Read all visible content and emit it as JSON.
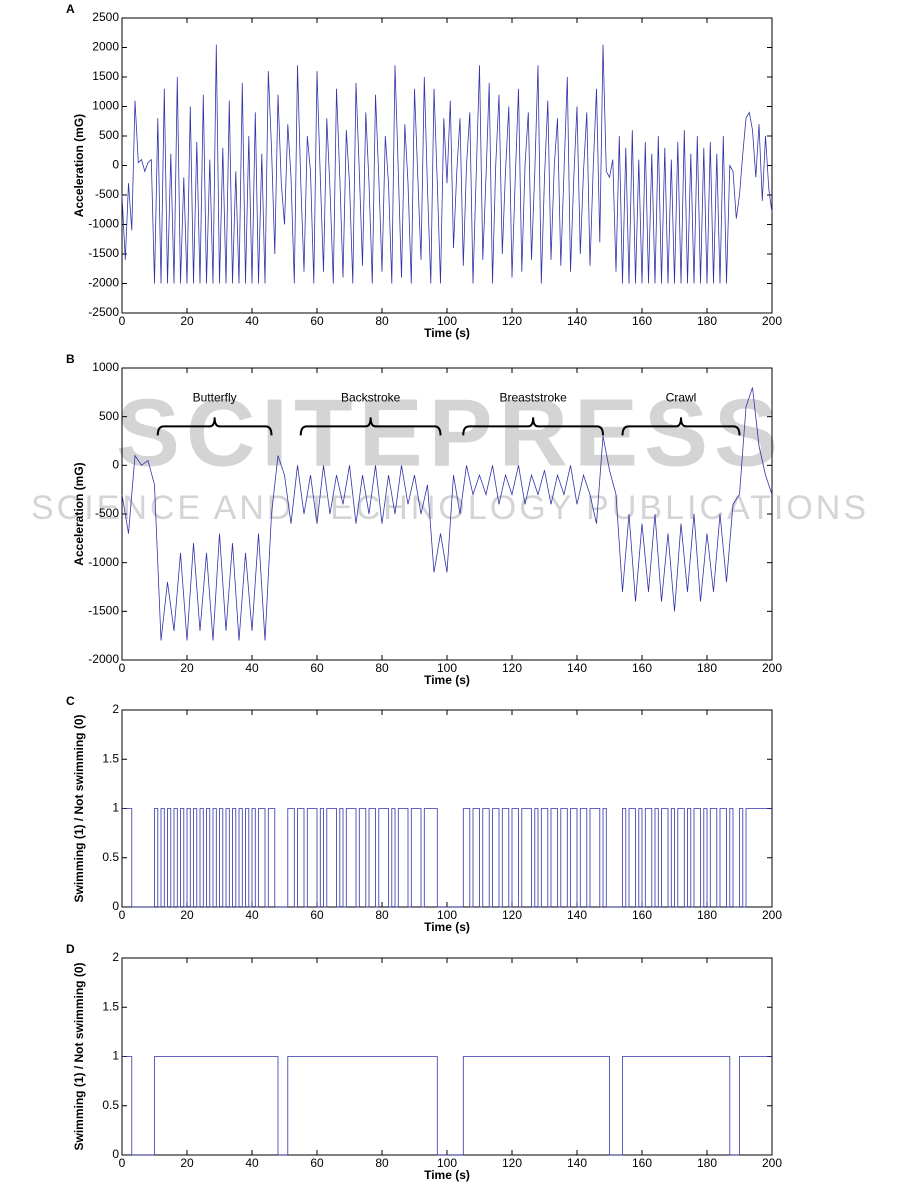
{
  "watermark": {
    "title": "SCITEPRESS",
    "subtitle": "SCIENCE AND TECHNOLOGY PUBLICATIONS"
  },
  "chart_data": [
    {
      "type": "line",
      "label": "A",
      "xlabel": "Time (s)",
      "ylabel": "Acceleration (mG)",
      "color": "#3333aa",
      "xlim": [
        0,
        200
      ],
      "xticks": [
        0,
        20,
        40,
        60,
        80,
        100,
        120,
        140,
        160,
        180,
        200
      ],
      "ylim": [
        -2500,
        2500
      ],
      "yticks": [
        -2500,
        -2000,
        -1500,
        -1000,
        -500,
        0,
        500,
        1000,
        1500,
        2000,
        2500
      ],
      "x": [
        0,
        1,
        2,
        3,
        4,
        5,
        6,
        7,
        8,
        9,
        10,
        11,
        12,
        13,
        14,
        15,
        16,
        17,
        18,
        19,
        20,
        21,
        22,
        23,
        24,
        25,
        26,
        27,
        28,
        29,
        30,
        31,
        32,
        33,
        34,
        35,
        36,
        37,
        38,
        39,
        40,
        41,
        42,
        43,
        44,
        45,
        46,
        47,
        48,
        49,
        50,
        51,
        52,
        53,
        54,
        55,
        56,
        57,
        58,
        59,
        60,
        61,
        62,
        63,
        64,
        65,
        66,
        67,
        68,
        69,
        70,
        71,
        72,
        73,
        74,
        75,
        76,
        77,
        78,
        79,
        80,
        81,
        82,
        83,
        84,
        85,
        86,
        87,
        88,
        89,
        90,
        91,
        92,
        93,
        94,
        95,
        96,
        97,
        98,
        99,
        100,
        101,
        102,
        103,
        104,
        105,
        106,
        107,
        108,
        109,
        110,
        111,
        112,
        113,
        114,
        115,
        116,
        117,
        118,
        119,
        120,
        121,
        122,
        123,
        124,
        125,
        126,
        127,
        128,
        129,
        130,
        131,
        132,
        133,
        134,
        135,
        136,
        137,
        138,
        139,
        140,
        141,
        142,
        143,
        144,
        145,
        146,
        147,
        148,
        149,
        150,
        151,
        152,
        153,
        154,
        155,
        156,
        157,
        158,
        159,
        160,
        161,
        162,
        163,
        164,
        165,
        166,
        167,
        168,
        169,
        170,
        171,
        172,
        173,
        174,
        175,
        176,
        177,
        178,
        179,
        180,
        181,
        182,
        183,
        184,
        185,
        186,
        187,
        188,
        189,
        190,
        191,
        192,
        193,
        194,
        195,
        196,
        197,
        198,
        199,
        200
      ],
      "values": [
        -500,
        -1600,
        -300,
        -1100,
        1100,
        50,
        100,
        -100,
        50,
        100,
        -2000,
        800,
        -2000,
        1300,
        -2000,
        200,
        -2000,
        1500,
        -2000,
        -200,
        -2000,
        1000,
        -2000,
        400,
        -2000,
        1200,
        -2000,
        100,
        -2000,
        2050,
        -2000,
        300,
        -2000,
        1100,
        -2000,
        -100,
        -2000,
        1400,
        -2000,
        500,
        -2000,
        900,
        -2000,
        200,
        -2000,
        1600,
        300,
        -1500,
        1200,
        -300,
        -1000,
        700,
        -200,
        -2000,
        1700,
        -300,
        -1800,
        500,
        -100,
        -2000,
        1600,
        -200,
        -1800,
        800,
        -400,
        -2000,
        1300,
        -200,
        -1900,
        600,
        -300,
        -2000,
        1400,
        -100,
        -1700,
        900,
        -300,
        -2000,
        1200,
        -200,
        -1800,
        500,
        -300,
        -2000,
        1700,
        -100,
        -1900,
        700,
        -300,
        -2000,
        1300,
        -200,
        -1600,
        1500,
        -400,
        -2000,
        1300,
        -300,
        -2000,
        800,
        -300,
        1100,
        -1400,
        -100,
        800,
        -1700,
        0,
        900,
        -2000,
        -100,
        1700,
        -1600,
        -200,
        1400,
        -2000,
        0,
        1200,
        -1500,
        -100,
        1000,
        -1900,
        -200,
        1300,
        -1800,
        0,
        900,
        -1600,
        -100,
        1700,
        -2000,
        -200,
        1100,
        -1600,
        0,
        800,
        -1700,
        -100,
        1500,
        -1800,
        -200,
        1000,
        -1500,
        -100,
        900,
        -1700,
        0,
        1300,
        -1300,
        2050,
        -100,
        -200,
        100,
        -1800,
        500,
        -2000,
        300,
        -2000,
        600,
        -2000,
        100,
        -2000,
        400,
        -2000,
        200,
        -2000,
        500,
        -2000,
        300,
        -2000,
        100,
        -2000,
        400,
        -2000,
        600,
        -2000,
        200,
        -2000,
        500,
        -2000,
        300,
        -2000,
        400,
        -2000,
        200,
        -2000,
        500,
        -2000,
        0,
        -100,
        -900,
        -500,
        200,
        800,
        900,
        600,
        -200,
        700,
        -600,
        500,
        -400,
        -800
      ]
    },
    {
      "type": "line",
      "label": "B",
      "xlabel": "Time (s)",
      "ylabel": "Acceleration (mG)",
      "color": "#3333aa",
      "xlim": [
        0,
        200
      ],
      "xticks": [
        0,
        20,
        40,
        60,
        80,
        100,
        120,
        140,
        160,
        180,
        200
      ],
      "ylim": [
        -2000,
        1000
      ],
      "yticks": [
        -2000,
        -1500,
        -1000,
        -500,
        0,
        500,
        1000
      ],
      "annotations": [
        {
          "text": "Butterfly",
          "x": [
            11,
            46
          ],
          "y": 400
        },
        {
          "text": "Backstroke",
          "x": [
            55,
            98
          ],
          "y": 400
        },
        {
          "text": "Breaststroke",
          "x": [
            105,
            148
          ],
          "y": 400
        },
        {
          "text": "Crawl",
          "x": [
            154,
            190
          ],
          "y": 400
        }
      ],
      "x": [
        0,
        2,
        4,
        6,
        8,
        10,
        12,
        14,
        16,
        18,
        20,
        22,
        24,
        26,
        28,
        30,
        32,
        34,
        36,
        38,
        40,
        42,
        44,
        46,
        48,
        50,
        52,
        54,
        56,
        58,
        60,
        62,
        64,
        66,
        68,
        70,
        72,
        74,
        76,
        78,
        80,
        82,
        84,
        86,
        88,
        90,
        92,
        94,
        96,
        98,
        100,
        102,
        104,
        106,
        108,
        110,
        112,
        114,
        116,
        118,
        120,
        122,
        124,
        126,
        128,
        130,
        132,
        134,
        136,
        138,
        140,
        142,
        144,
        146,
        148,
        150,
        152,
        154,
        156,
        158,
        160,
        162,
        164,
        166,
        168,
        170,
        172,
        174,
        176,
        178,
        180,
        182,
        184,
        186,
        188,
        190,
        192,
        194,
        196,
        198,
        200
      ],
      "values": [
        -300,
        -700,
        100,
        0,
        50,
        -200,
        -1800,
        -1200,
        -1700,
        -900,
        -1800,
        -800,
        -1700,
        -900,
        -1800,
        -700,
        -1700,
        -800,
        -1800,
        -900,
        -1700,
        -700,
        -1800,
        -500,
        100,
        -100,
        -600,
        0,
        -500,
        -100,
        -600,
        0,
        -500,
        -100,
        -400,
        0,
        -600,
        -100,
        -500,
        0,
        -600,
        -100,
        -500,
        0,
        -400,
        -100,
        -500,
        -200,
        -1100,
        -700,
        -1100,
        -100,
        -500,
        0,
        -300,
        -100,
        -300,
        0,
        -400,
        -100,
        -300,
        0,
        -400,
        -100,
        -300,
        -50,
        -400,
        -100,
        -300,
        0,
        -400,
        -100,
        -300,
        -600,
        300,
        -50,
        -300,
        -1300,
        -500,
        -1400,
        -600,
        -1300,
        -500,
        -1400,
        -700,
        -1500,
        -600,
        -1300,
        -500,
        -1400,
        -700,
        -1300,
        -500,
        -1200,
        -400,
        -300,
        600,
        800,
        200,
        -100,
        -300
      ]
    },
    {
      "type": "step",
      "label": "C",
      "xlabel": "Time (s)",
      "ylabel": "Swimming (1) / Not swimming (0)",
      "color": "#3333aa",
      "xlim": [
        0,
        200
      ],
      "xticks": [
        0,
        20,
        40,
        60,
        80,
        100,
        120,
        140,
        160,
        180,
        200
      ],
      "ylim": [
        0,
        2
      ],
      "yticks": [
        0,
        0.5,
        1,
        1.5,
        2
      ],
      "x": [
        0,
        3,
        10,
        11,
        12,
        13,
        14,
        15,
        16,
        17,
        18,
        19,
        20,
        21,
        22,
        23,
        24,
        25,
        26,
        27,
        28,
        29,
        30,
        31,
        32,
        33,
        34,
        35,
        36,
        37,
        38,
        39,
        40,
        41,
        42,
        44,
        45,
        47,
        51,
        53,
        54,
        56,
        57,
        60,
        61,
        62,
        63,
        66,
        67,
        68,
        69,
        72,
        73,
        75,
        76,
        78,
        79,
        82,
        83,
        84,
        85,
        88,
        89,
        92,
        93,
        97,
        105,
        107,
        108,
        110,
        111,
        113,
        114,
        116,
        117,
        119,
        120,
        122,
        123,
        126,
        127,
        128,
        129,
        131,
        132,
        134,
        135,
        137,
        138,
        140,
        141,
        143,
        144,
        147,
        148,
        149,
        154,
        155,
        156,
        158,
        159,
        160,
        161,
        163,
        164,
        165,
        166,
        168,
        169,
        170,
        171,
        173,
        174,
        175,
        176,
        178,
        179,
        180,
        181,
        183,
        184,
        186,
        187,
        188,
        190,
        191,
        192,
        200
      ],
      "values": [
        1,
        0,
        1,
        0,
        1,
        0,
        1,
        0,
        1,
        0,
        1,
        0,
        1,
        0,
        1,
        0,
        1,
        0,
        1,
        0,
        1,
        0,
        1,
        0,
        1,
        0,
        1,
        0,
        1,
        0,
        1,
        0,
        1,
        0,
        1,
        0,
        1,
        0,
        1,
        0,
        1,
        0,
        1,
        0,
        1,
        0,
        1,
        0,
        1,
        0,
        1,
        0,
        1,
        0,
        1,
        0,
        1,
        0,
        1,
        0,
        1,
        0,
        1,
        0,
        1,
        0,
        1,
        0,
        1,
        0,
        1,
        0,
        1,
        0,
        1,
        0,
        1,
        0,
        1,
        0,
        1,
        0,
        1,
        0,
        1,
        0,
        1,
        0,
        1,
        0,
        1,
        0,
        1,
        0,
        1,
        0,
        1,
        0,
        1,
        0,
        1,
        0,
        1,
        0,
        1,
        0,
        1,
        0,
        1,
        0,
        1,
        0,
        1,
        0,
        1,
        0,
        1,
        0,
        1,
        0,
        1,
        0,
        1,
        0,
        1,
        0,
        1,
        1
      ]
    },
    {
      "type": "step",
      "label": "D",
      "xlabel": "Time (s)",
      "ylabel": "Swimming (1) / Not swimming (0)",
      "color": "#3333aa",
      "xlim": [
        0,
        200
      ],
      "xticks": [
        0,
        20,
        40,
        60,
        80,
        100,
        120,
        140,
        160,
        180,
        200
      ],
      "ylim": [
        0,
        2
      ],
      "yticks": [
        0,
        0.5,
        1,
        1.5,
        2
      ],
      "x": [
        0,
        3,
        10,
        48,
        51,
        97,
        105,
        150,
        154,
        187,
        190,
        200
      ],
      "values": [
        1,
        0,
        1,
        0,
        1,
        0,
        1,
        0,
        1,
        0,
        1,
        1
      ]
    }
  ]
}
